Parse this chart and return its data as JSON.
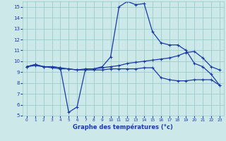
{
  "xlabel": "Graphe des températures (°c)",
  "background_color": "#cce8e8",
  "grid_color": "#99cccc",
  "line_color": "#1a3aaa",
  "xlim": [
    -0.5,
    23.5
  ],
  "ylim": [
    5,
    15.5
  ],
  "yticks": [
    5,
    6,
    7,
    8,
    9,
    10,
    11,
    12,
    13,
    14,
    15
  ],
  "xticks": [
    0,
    1,
    2,
    3,
    4,
    5,
    6,
    7,
    8,
    9,
    10,
    11,
    12,
    13,
    14,
    15,
    16,
    17,
    18,
    19,
    20,
    21,
    22,
    23
  ],
  "series": [
    {
      "x": [
        0,
        1,
        2,
        3,
        4,
        5,
        6,
        7,
        8,
        9,
        10,
        11,
        12,
        13,
        14,
        15,
        16,
        17,
        18,
        19,
        20,
        21,
        22,
        23
      ],
      "y": [
        9.5,
        9.7,
        9.5,
        9.5,
        9.4,
        5.3,
        5.8,
        9.3,
        9.3,
        9.5,
        10.4,
        15.0,
        15.5,
        15.2,
        15.3,
        12.7,
        11.7,
        11.5,
        11.5,
        11.0,
        9.8,
        9.5,
        8.8,
        7.8
      ]
    },
    {
      "x": [
        0,
        1,
        2,
        3,
        4,
        5,
        6,
        7,
        8,
        9,
        10,
        11,
        12,
        13,
        14,
        15,
        16,
        17,
        18,
        19,
        20,
        21,
        22,
        23
      ],
      "y": [
        9.5,
        9.7,
        9.5,
        9.5,
        9.4,
        9.3,
        9.2,
        9.3,
        9.3,
        9.4,
        9.5,
        9.6,
        9.8,
        9.9,
        10.0,
        10.1,
        10.2,
        10.3,
        10.5,
        10.8,
        10.9,
        10.3,
        9.5,
        9.2
      ]
    },
    {
      "x": [
        0,
        1,
        2,
        3,
        4,
        5,
        6,
        7,
        8,
        9,
        10,
        11,
        12,
        13,
        14,
        15,
        16,
        17,
        18,
        19,
        20,
        21,
        22,
        23
      ],
      "y": [
        9.5,
        9.6,
        9.5,
        9.4,
        9.3,
        9.3,
        9.2,
        9.2,
        9.2,
        9.2,
        9.3,
        9.3,
        9.3,
        9.3,
        9.4,
        9.4,
        8.5,
        8.3,
        8.2,
        8.2,
        8.3,
        8.3,
        8.3,
        7.8
      ]
    }
  ]
}
